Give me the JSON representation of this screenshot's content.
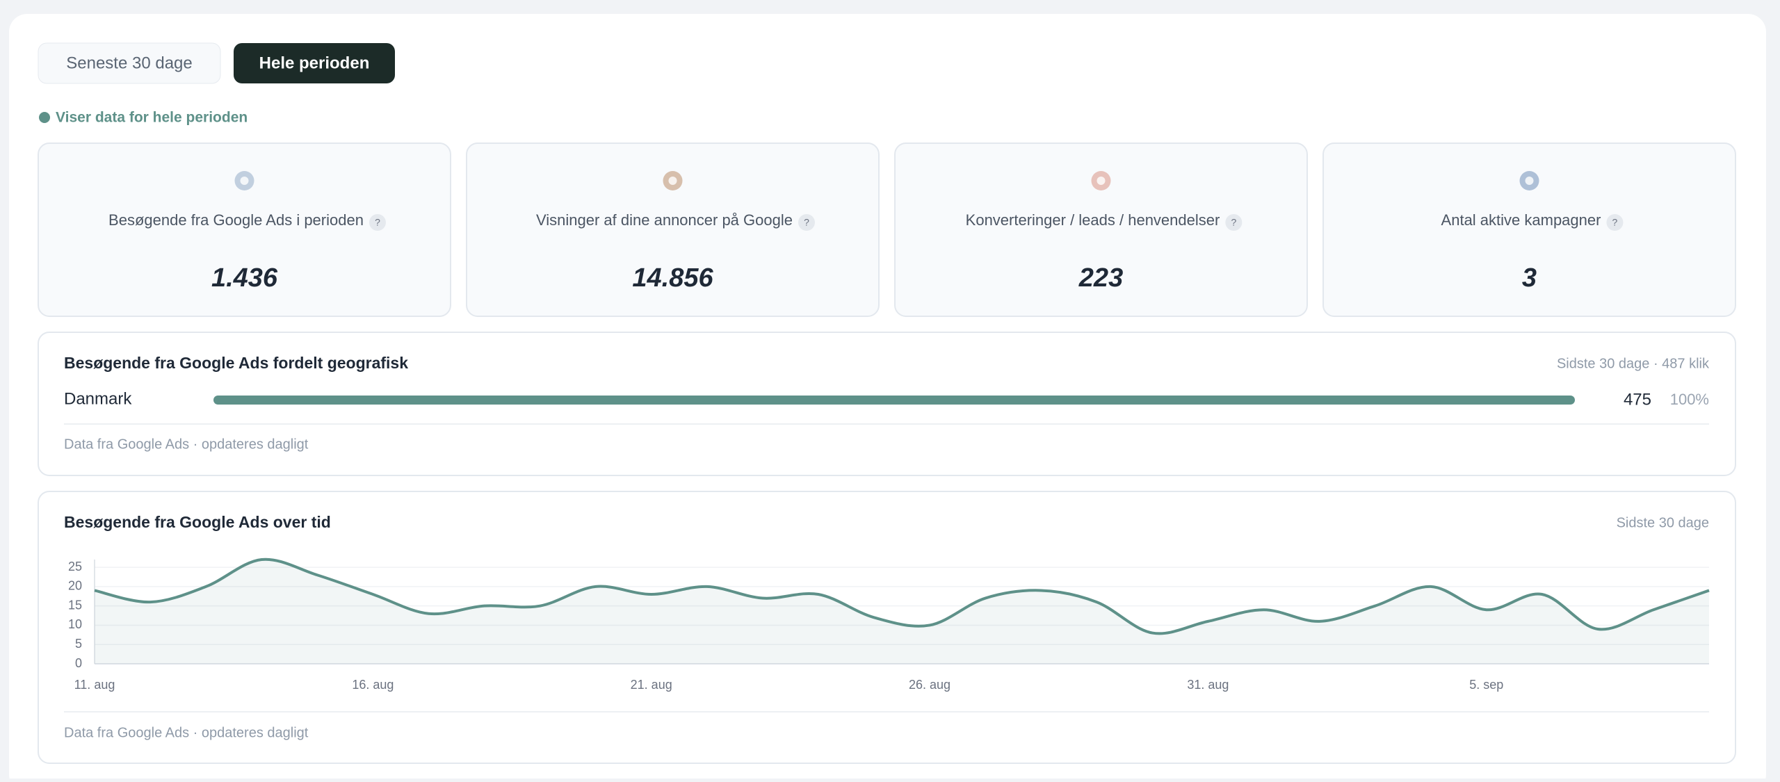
{
  "tabs": [
    "Seneste 30 dage",
    "Hele perioden"
  ],
  "status": "Viser data for hele perioden",
  "kpis": [
    {
      "label": "Besøgende fra Google Ads i perioden",
      "value": "1.436"
    },
    {
      "label": "Visninger af dine annoncer på Google",
      "value": "14.856"
    },
    {
      "label": "Konverteringer / leads / henvendelser",
      "value": "223"
    },
    {
      "label": "Antal aktive kampagner",
      "value": "3"
    }
  ],
  "help": "?",
  "geo": {
    "title": "Besøgende fra Google Ads fordelt geografisk",
    "meta": "Sidste 30 dage · 487 klik",
    "rows": [
      {
        "name": "Danmark",
        "value": 475,
        "share": 100,
        "share_label": "100%"
      }
    ],
    "footer": "Data fra Google Ads · opdateres dagligt"
  },
  "timeline": {
    "title": "Besøgende fra Google Ads over tid",
    "meta": "Sidste 30 dage",
    "footer": "Data fra Google Ads · opdateres dagligt"
  },
  "chart_data": {
    "type": "line",
    "categories": [
      "11. aug",
      null,
      null,
      null,
      null,
      "16. aug",
      null,
      null,
      null,
      null,
      "21. aug",
      null,
      null,
      null,
      null,
      "26. aug",
      null,
      null,
      null,
      null,
      "31. aug",
      null,
      null,
      null,
      null,
      "5. sep",
      null,
      null,
      null,
      null
    ],
    "series": [
      {
        "name": "Besøgende",
        "color": "#5e9189",
        "values": [
          19,
          16,
          20,
          27,
          23,
          18,
          13,
          15,
          15,
          20,
          18,
          20,
          17,
          18,
          12,
          10,
          17,
          19,
          16,
          8,
          11,
          14,
          11,
          15,
          20,
          14,
          18,
          9,
          14,
          19
        ]
      }
    ],
    "ylim": [
      0,
      27
    ],
    "yticks": [
      0,
      5,
      10,
      15,
      20,
      25
    ],
    "grid": true
  }
}
